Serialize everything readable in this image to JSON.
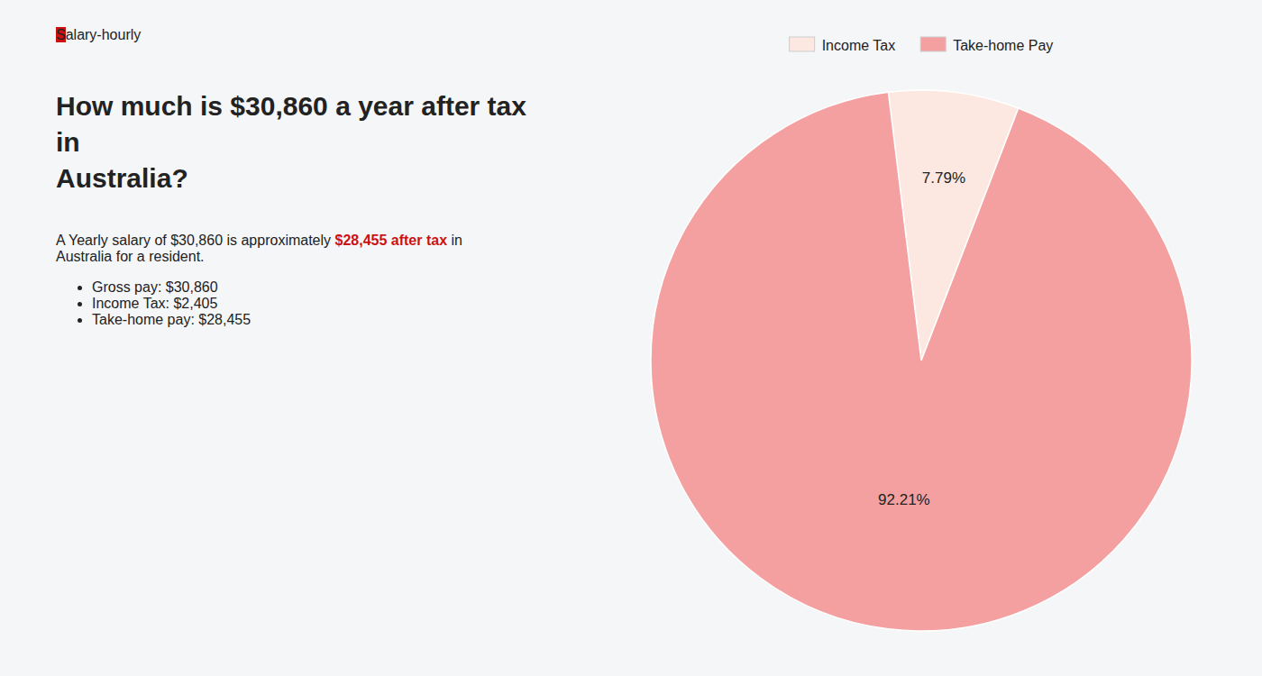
{
  "chart_data": {
    "type": "pie",
    "title": [
      "How much is $30,860 a year after tax in",
      "Australia?"
    ],
    "annotations": [
      [
        {
          "text": "S",
          "color": "#cc1111"
        },
        {
          "text": "alary-hourly"
        }
      ],
      [
        {
          "text": "A Yearly salary of $30,860 is approximately "
        },
        {
          "text": "$28,455 after tax",
          "color": "#cc1111"
        },
        {
          "text": " in"
        }
      ],
      [
        {
          "text": "Australia for a resident."
        }
      ],
      [
        {
          "text": "Gross pay: $30,860"
        }
      ],
      [
        {
          "text": "Income Tax: $2,405"
        }
      ],
      [
        {
          "text": "Take-home pay: $28,455"
        }
      ]
    ],
    "categories": [
      "Income Tax",
      "Take-home Pay"
    ],
    "values": [
      7.79,
      92.21
    ],
    "value_labels": [
      "7.79%",
      "92.21%"
    ],
    "colors": [
      "#fce8e0",
      "#f5a0a0"
    ],
    "data_labels": true,
    "legend": "top"
  }
}
